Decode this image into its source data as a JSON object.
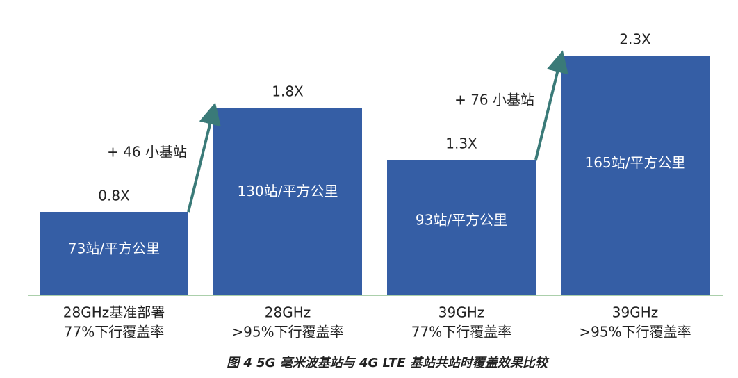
{
  "chart_data": {
    "type": "bar",
    "title": "图 4 5G 毫米波基站与 4G LTE 基站共站时覆盖效果比较",
    "categories": [
      [
        "28GHz基准部署",
        "77%下行覆盖率"
      ],
      [
        "28GHz",
        ">95%下行覆盖率"
      ],
      [
        "39GHz",
        "77%下行覆盖率"
      ],
      [
        "39GHz",
        ">95%下行覆盖率"
      ]
    ],
    "values": [
      0.8,
      1.8,
      1.3,
      2.3
    ],
    "value_labels": [
      "0.8X",
      "1.8X",
      "1.3X",
      "2.3X"
    ],
    "inner_labels": [
      "73站/平方公里",
      "130站/平方公里",
      "93站/平方公里",
      "165站/平方公里"
    ],
    "annotations": [
      "+ 46 小基站",
      "+ 76 小基站"
    ],
    "color": "#355ea5",
    "arrow_color": "#3a7a78"
  }
}
